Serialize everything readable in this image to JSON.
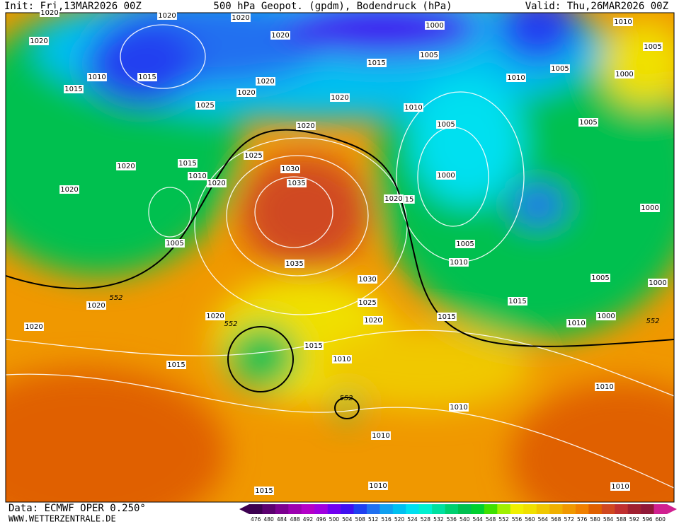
{
  "header": {
    "init": "Init: Fri,13MAR2026 00Z",
    "title": "500 hPa Geopot. (gpdm), Bodendruck (hPa)",
    "valid": "Valid: Thu,26MAR2026 00Z"
  },
  "isobar_labels": [
    "1020",
    "1020",
    "1020",
    "1020",
    "1000",
    "1010",
    "1020",
    "1005",
    "1005",
    "1010",
    "1015",
    "1015",
    "1010",
    "1005",
    "1000",
    "1015",
    "1020",
    "1020",
    "1025",
    "1020",
    "1010",
    "1005",
    "1005",
    "1020",
    "1025",
    "1015",
    "1020",
    "1030",
    "1010",
    "1020",
    "1035",
    "1000",
    "1020",
    "1020",
    "15",
    "1000",
    "1005",
    "1005",
    "1035",
    "1010",
    "1030",
    "1005",
    "1000",
    "1025",
    "1015",
    "1020",
    "1020",
    "1020",
    "1015",
    "1000",
    "1010",
    "1020",
    "1015",
    "1015",
    "1010",
    "1010",
    "1010",
    "1010",
    "1010",
    "1015",
    "1010"
  ],
  "contour_labels": [
    "552",
    "552",
    "552",
    "552"
  ],
  "colorbar": {
    "labels": [
      476,
      480,
      484,
      488,
      492,
      496,
      500,
      504,
      508,
      512,
      516,
      520,
      524,
      528,
      532,
      536,
      540,
      544,
      548,
      552,
      556,
      560,
      564,
      568,
      572,
      576,
      580,
      584,
      588,
      592,
      596,
      600
    ],
    "colors": [
      "#3c0050",
      "#5c0070",
      "#7c0090",
      "#9c00b0",
      "#b400c8",
      "#a000e0",
      "#7000f0",
      "#4010f0",
      "#2040f0",
      "#2070f0",
      "#10a0f0",
      "#00c0f0",
      "#00e0f0",
      "#00f0d0",
      "#00e0a0",
      "#00d070",
      "#00c050",
      "#00d030",
      "#40e000",
      "#a0f000",
      "#f0f000",
      "#f0e000",
      "#f0c800",
      "#f0b000",
      "#f09800",
      "#f08000",
      "#e06000",
      "#d04820",
      "#c03030",
      "#a02030",
      "#901838",
      "#d02090"
    ]
  },
  "footer": {
    "data": "Data: ECMWF OPER 0.250°",
    "site": "WWW.WETTERZENTRALE.DE"
  }
}
